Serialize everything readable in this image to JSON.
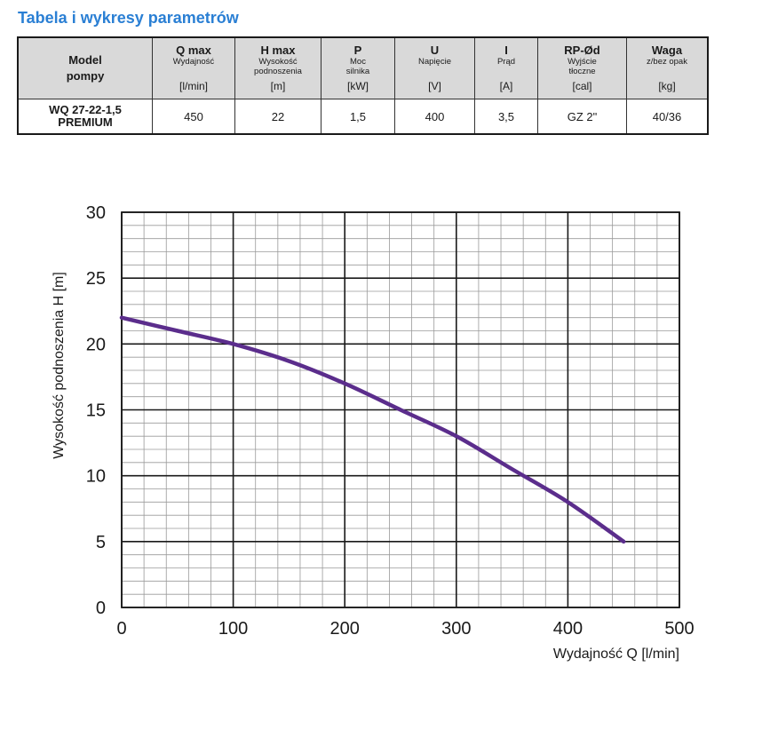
{
  "page": {
    "title": "Tabela i wykresy parametrów"
  },
  "table": {
    "model_header": [
      "Model",
      "pompy"
    ],
    "columns": [
      {
        "name": "Q max",
        "desc": [
          "Wydajność"
        ],
        "unit": "[l/min]"
      },
      {
        "name": "H max",
        "desc": [
          "Wysokość",
          "podnoszenia"
        ],
        "unit": "[m]"
      },
      {
        "name": "P",
        "desc": [
          "Moc",
          "silnika"
        ],
        "unit": "[kW]"
      },
      {
        "name": "U",
        "desc": [
          "Napięcie"
        ],
        "unit": "[V]"
      },
      {
        "name": "I",
        "desc": [
          "Prąd"
        ],
        "unit": "[A]"
      },
      {
        "name": "RP-Ød",
        "desc": [
          "Wyjście",
          "tłoczne"
        ],
        "unit": "[cal]"
      },
      {
        "name": "Waga",
        "desc": [
          "z/bez opak"
        ],
        "unit": "[kg]"
      }
    ],
    "row": {
      "model": [
        "WQ 27-22-1,5",
        "PREMIUM"
      ],
      "values": [
        "450",
        "22",
        "1,5",
        "400",
        "3,5",
        "GZ 2\"",
        "40/36"
      ]
    }
  },
  "chart_data": {
    "type": "line",
    "title": "",
    "xlabel": "Wydajność Q [l/min]",
    "ylabel": "Wysokość podnoszenia H [m]",
    "xlim": [
      0,
      500
    ],
    "ylim": [
      0,
      30
    ],
    "xticks": [
      "0",
      "100",
      "200",
      "300",
      "400",
      "500"
    ],
    "yticks": [
      "0",
      "5",
      "10",
      "15",
      "20",
      "25",
      "30"
    ],
    "grid": true,
    "series": [
      {
        "name": "WQ 27-22-1,5 PREMIUM",
        "color": "#5b2d8c",
        "x": [
          0,
          50,
          100,
          150,
          200,
          250,
          300,
          350,
          400,
          450
        ],
        "y": [
          22,
          21,
          20,
          18.7,
          17,
          15,
          13,
          10.5,
          8,
          5
        ]
      }
    ]
  }
}
